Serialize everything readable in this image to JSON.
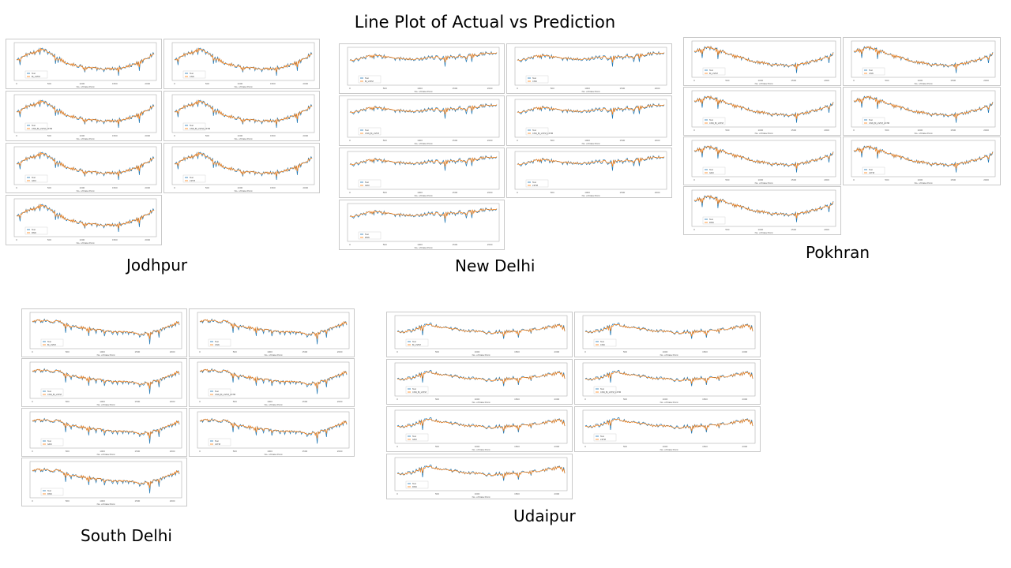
{
  "page": {
    "title": "Line Plot of Actual vs Prediction"
  },
  "colors": {
    "actual": "#1f77b4",
    "prediction": "#ff7f0e"
  },
  "chart_data": [
    {
      "type": "line",
      "title": "Jodhpur",
      "xlabel": "No. of Data Point",
      "xlim": [
        0,
        2100
      ],
      "ylim": [
        0,
        30
      ],
      "series": [
        {
          "name": "Test"
        },
        {
          "name": "Bi_LSTM"
        }
      ],
      "models": [
        "Bi_LSTM",
        "CNN",
        "CNN_Bi_LSTM_LSTM",
        "CNN_Bi_LSTM_LSTM",
        "GRU",
        "LSTM",
        "RNN"
      ],
      "profile": [
        16,
        22,
        26,
        20,
        14,
        11,
        9,
        8,
        9,
        11,
        15,
        22
      ]
    },
    {
      "type": "line",
      "title": "New Delhi",
      "xlabel": "No. of Data Point",
      "xlim": [
        0,
        2100
      ],
      "ylim": [
        0,
        20
      ],
      "series": [
        {
          "name": "Test"
        },
        {
          "name": "Bi_LSTM"
        }
      ],
      "models": [
        "Bi_LSTM",
        "CNN",
        "CNN_Bi_LSTM",
        "CNN_Bi_LSTM_LSTM",
        "GRU",
        "LSTM",
        "RNN"
      ],
      "profile": [
        13,
        15,
        16,
        15,
        14,
        14,
        15,
        15,
        16,
        16,
        17,
        18
      ]
    },
    {
      "type": "line",
      "title": "Pokhran",
      "xlabel": "No. of Data Point",
      "xlim": [
        0,
        2100
      ],
      "ylim": [
        0,
        30
      ],
      "series": [
        {
          "name": "Test"
        },
        {
          "name": "Bi_LSTM"
        }
      ],
      "models": [
        "Bi_LSTM",
        "CNN",
        "CNN_Bi_LSTM",
        "CNN_Bi_LSTM_LSTM",
        "GRU",
        "LSTM",
        "RNN"
      ],
      "profile": [
        22,
        26,
        23,
        18,
        15,
        12,
        10,
        9,
        10,
        12,
        15,
        20
      ]
    },
    {
      "type": "line",
      "title": "South Delhi",
      "xlabel": "No. of Data Point",
      "xlim": [
        0,
        2100
      ],
      "ylim": [
        0,
        16
      ],
      "series": [
        {
          "name": "Test"
        },
        {
          "name": "Bi_LSTM"
        }
      ],
      "models": [
        "Bi_LSTM",
        "CNN",
        "CNN_Bi_LSTM",
        "CNN_Bi_LSTM_LSTM",
        "GRU",
        "LSTM",
        "RNN"
      ],
      "profile": [
        12,
        13,
        12,
        10,
        9,
        8,
        7,
        7,
        6,
        7,
        9,
        12
      ]
    },
    {
      "type": "line",
      "title": "Udaipur",
      "xlabel": "No. of Data Point",
      "xlim": [
        0,
        2100
      ],
      "ylim": [
        0,
        180
      ],
      "series": [
        {
          "name": "Test"
        },
        {
          "name": "Bi_LSTM"
        }
      ],
      "models": [
        "Bi_LSTM",
        "CNN",
        "CNN_Bi_LSTM",
        "CNN_Bi_LSTM_LSTM",
        "GRU",
        "LSTM",
        "RNN"
      ],
      "profile": [
        90,
        100,
        140,
        120,
        105,
        95,
        85,
        95,
        100,
        110,
        120,
        135
      ]
    }
  ]
}
